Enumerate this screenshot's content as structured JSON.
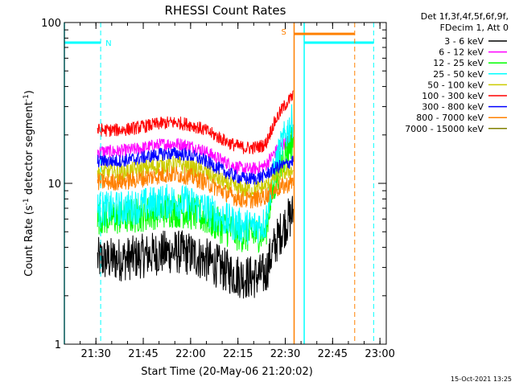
{
  "chart_data": {
    "type": "line",
    "title": "RHESSI Count Rates",
    "ylabel_main": "Count Rate (s",
    "ylabel_sup1": "-1",
    "ylabel_mid": " detector segment",
    "ylabel_sup2": "-1",
    "ylabel_end": ")",
    "xlabel": "Start Time (20-May-06 21:20:02)",
    "yscale": "log",
    "ylim": [
      1,
      100
    ],
    "xlim_minutes": [
      1280,
      1382
    ],
    "x_ticks": [
      {
        "minute": 1290,
        "label": "21:30"
      },
      {
        "minute": 1305,
        "label": "21:45"
      },
      {
        "minute": 1320,
        "label": "22:00"
      },
      {
        "minute": 1335,
        "label": "22:15"
      },
      {
        "minute": 1350,
        "label": "22:30"
      },
      {
        "minute": 1365,
        "label": "22:45"
      },
      {
        "minute": 1380,
        "label": "23:00"
      }
    ],
    "y_ticks": [
      {
        "value": 1,
        "label": "1"
      },
      {
        "value": 10,
        "label": "10"
      },
      {
        "value": 100,
        "label": "100"
      }
    ],
    "legend_title_1": "Det 1f,3f,4f,5f,6f,9f,",
    "legend_title_2": "FDecim 1, Att 0",
    "series": [
      {
        "name": "3 - 6 keV",
        "color": "#000000",
        "level": 3.3,
        "noise": 0.1,
        "end": 6.5
      },
      {
        "name": "6 - 12 keV",
        "color": "#ff00ff",
        "level": 15.5,
        "noise": 0.03,
        "end": 19.0
      },
      {
        "name": "12 - 25 keV",
        "color": "#00ff00",
        "level": 6.0,
        "noise": 0.08,
        "end": 19.0
      },
      {
        "name": "25 - 50 keV",
        "color": "#00ffff",
        "level": 6.8,
        "noise": 0.08,
        "end": 25.0
      },
      {
        "name": "50 - 100 keV",
        "color": "#cccc00",
        "level": 11.5,
        "noise": 0.04,
        "end": 12.0
      },
      {
        "name": "100 - 300 keV",
        "color": "#ff0000",
        "level": 21.0,
        "noise": 0.03,
        "end": 35.0
      },
      {
        "name": "300 - 800 keV",
        "color": "#0000ff",
        "level": 13.5,
        "noise": 0.03,
        "end": 13.0
      },
      {
        "name": "800 - 7000 keV",
        "color": "#ff8000",
        "level": 10.0,
        "noise": 0.04,
        "end": 9.5
      },
      {
        "name": "7000 - 15000 keV",
        "color": "#808000",
        "level": 0,
        "noise": 0,
        "end": 0
      }
    ],
    "data_start_minute": 1290.5,
    "data_end_minute": 1352.5,
    "night_label": "N",
    "saa_label": "S",
    "night_segments": [
      {
        "start": 1280,
        "end": 1291.5,
        "level": 75
      },
      {
        "start": 1356,
        "end": 1378,
        "level": 75
      }
    ],
    "saa_segment": {
      "start": 1352.8,
      "end": 1372,
      "level": 85
    },
    "cyan_dashed_minutes": [
      1291.5,
      1378
    ],
    "orange_dashed_minutes": [
      1372
    ]
  },
  "footer": {
    "timestamp": "15-Oct-2021 13:25"
  }
}
